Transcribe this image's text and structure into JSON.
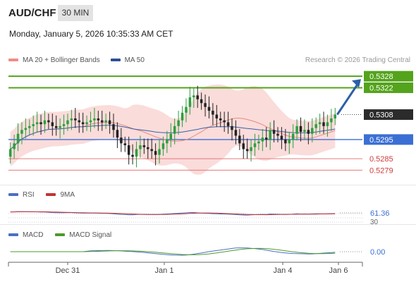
{
  "header": {
    "pair": "AUD/CHF",
    "timeframe": "30 MIN",
    "datetime": "Monday, January 5, 2026 10:35:33 AM CET"
  },
  "legend": {
    "ma20_label": "MA 20 + Bollinger Bands",
    "ma50_label": "MA 50",
    "copyright": "Research © 2026 Trading Central",
    "rsi_label": "RSI",
    "rsi_ma_label": "9MA",
    "macd_label": "MACD",
    "macd_signal_label": "MACD Signal"
  },
  "colors": {
    "candle_up": "#2e9e3e",
    "candle_down": "#222222",
    "bollinger_fill": "#f9d6d3",
    "ma20": "#e88a80",
    "ma50": "#3a5ea8",
    "target_line": "#54a31c",
    "pivot_line": "#3b6fd4",
    "support_line": "#e57a7a",
    "current_label": "#2b2b2b",
    "arrow": "#2b5fa8",
    "rsi_line": "#4a6fc4",
    "rsi_ma": "#c33333",
    "macd_line": "#4a6fc4",
    "macd_signal": "#4d9a2b"
  },
  "chart_data": [
    {
      "type": "candlestick",
      "title": "AUD/CHF",
      "x_ticks": [
        "Dec 31",
        "Jan 1",
        "Jan 4",
        "Jan 6"
      ],
      "ylim": [
        0.5274,
        0.5331
      ],
      "price_levels": [
        {
          "value": 0.5328,
          "label": "0.5328",
          "kind": "target"
        },
        {
          "value": 0.5322,
          "label": "0.5322",
          "kind": "target"
        },
        {
          "value": 0.5308,
          "label": "0.5308",
          "kind": "current"
        },
        {
          "value": 0.5295,
          "label": "0.5295",
          "kind": "pivot"
        },
        {
          "value": 0.5285,
          "label": "0.5285",
          "kind": "support"
        },
        {
          "value": 0.5279,
          "label": "0.5279",
          "kind": "support"
        }
      ],
      "close_series": [
        0.529,
        0.5293,
        0.5298,
        0.53,
        0.5301,
        0.5302,
        0.5303,
        0.5304,
        0.5303,
        0.5305,
        0.5304,
        0.5302,
        0.5301,
        0.5302,
        0.5303,
        0.5305,
        0.5306,
        0.5305,
        0.5304,
        0.5303,
        0.5304,
        0.5305,
        0.5306,
        0.5305,
        0.5304,
        0.5305,
        0.5303,
        0.53,
        0.5296,
        0.5293,
        0.5292,
        0.5287,
        0.5286,
        0.529,
        0.5292,
        0.5291,
        0.529,
        0.5289,
        0.5287,
        0.529,
        0.5293,
        0.5295,
        0.5298,
        0.5302,
        0.5305,
        0.5309,
        0.5312,
        0.5317,
        0.5318,
        0.5316,
        0.5314,
        0.5312,
        0.531,
        0.5308,
        0.5306,
        0.5305,
        0.5304,
        0.5302,
        0.53,
        0.5297,
        0.5293,
        0.529,
        0.5289,
        0.5291,
        0.5293,
        0.5294,
        0.5296,
        0.5295,
        0.53,
        0.5298,
        0.5297,
        0.5295,
        0.5293,
        0.5295,
        0.5298,
        0.5302,
        0.5299,
        0.53,
        0.5298,
        0.5301,
        0.5303,
        0.5304,
        0.5302,
        0.5304,
        0.5306,
        0.5308
      ]
    },
    {
      "type": "line",
      "title": "RSI",
      "series": [
        {
          "name": "RSI"
        },
        {
          "name": "9MA"
        }
      ],
      "current_value": 61.36,
      "current_label": "61.36",
      "partial_tick_label": "30",
      "ylim": [
        0,
        100
      ]
    },
    {
      "type": "line",
      "title": "MACD",
      "series": [
        {
          "name": "MACD"
        },
        {
          "name": "MACD Signal"
        }
      ],
      "current_value": 0.0,
      "current_label": "0.00"
    }
  ]
}
